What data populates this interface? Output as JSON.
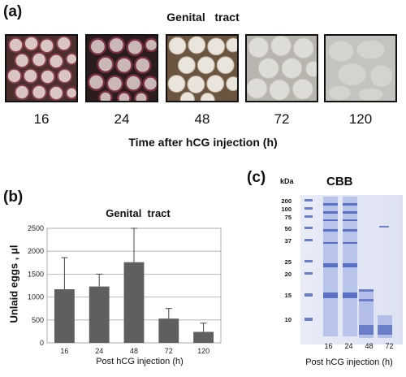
{
  "panel_a": {
    "label": "(a)",
    "title": "Genital   tract",
    "time_labels": [
      "16",
      "24",
      "48",
      "72",
      "120"
    ],
    "xlabel": "Time after hCG injection (h)"
  },
  "panel_b": {
    "label": "(b)",
    "title": "Genital  tract",
    "ylabel": "Unlaid eggs , μl",
    "xlabel": "Post hCG injection (h)"
  },
  "panel_c": {
    "label": "(c)",
    "unit": "kDa",
    "title": "CBB",
    "markers": [
      "200",
      "100",
      "75",
      "50",
      "37",
      "25",
      "20",
      "15",
      "10"
    ],
    "lane_labels": [
      "16",
      "24",
      "48",
      "72"
    ],
    "xlabel": "Post hCG injection (h)"
  },
  "chart_data": {
    "type": "bar",
    "title": "Genital  tract",
    "xlabel": "Post hCG injection (h)",
    "ylabel": "Unlaid eggs , μl",
    "categories": [
      "16",
      "24",
      "48",
      "72",
      "120"
    ],
    "values": [
      1170,
      1230,
      1760,
      530,
      240
    ],
    "error_upper": [
      690,
      270,
      740,
      220,
      190
    ],
    "ylim": [
      0,
      2500
    ],
    "yticks": [
      "0",
      "500",
      "1000",
      "1500",
      "2000",
      "2500"
    ],
    "grid": true,
    "bar_color": "#5f5f5f"
  }
}
